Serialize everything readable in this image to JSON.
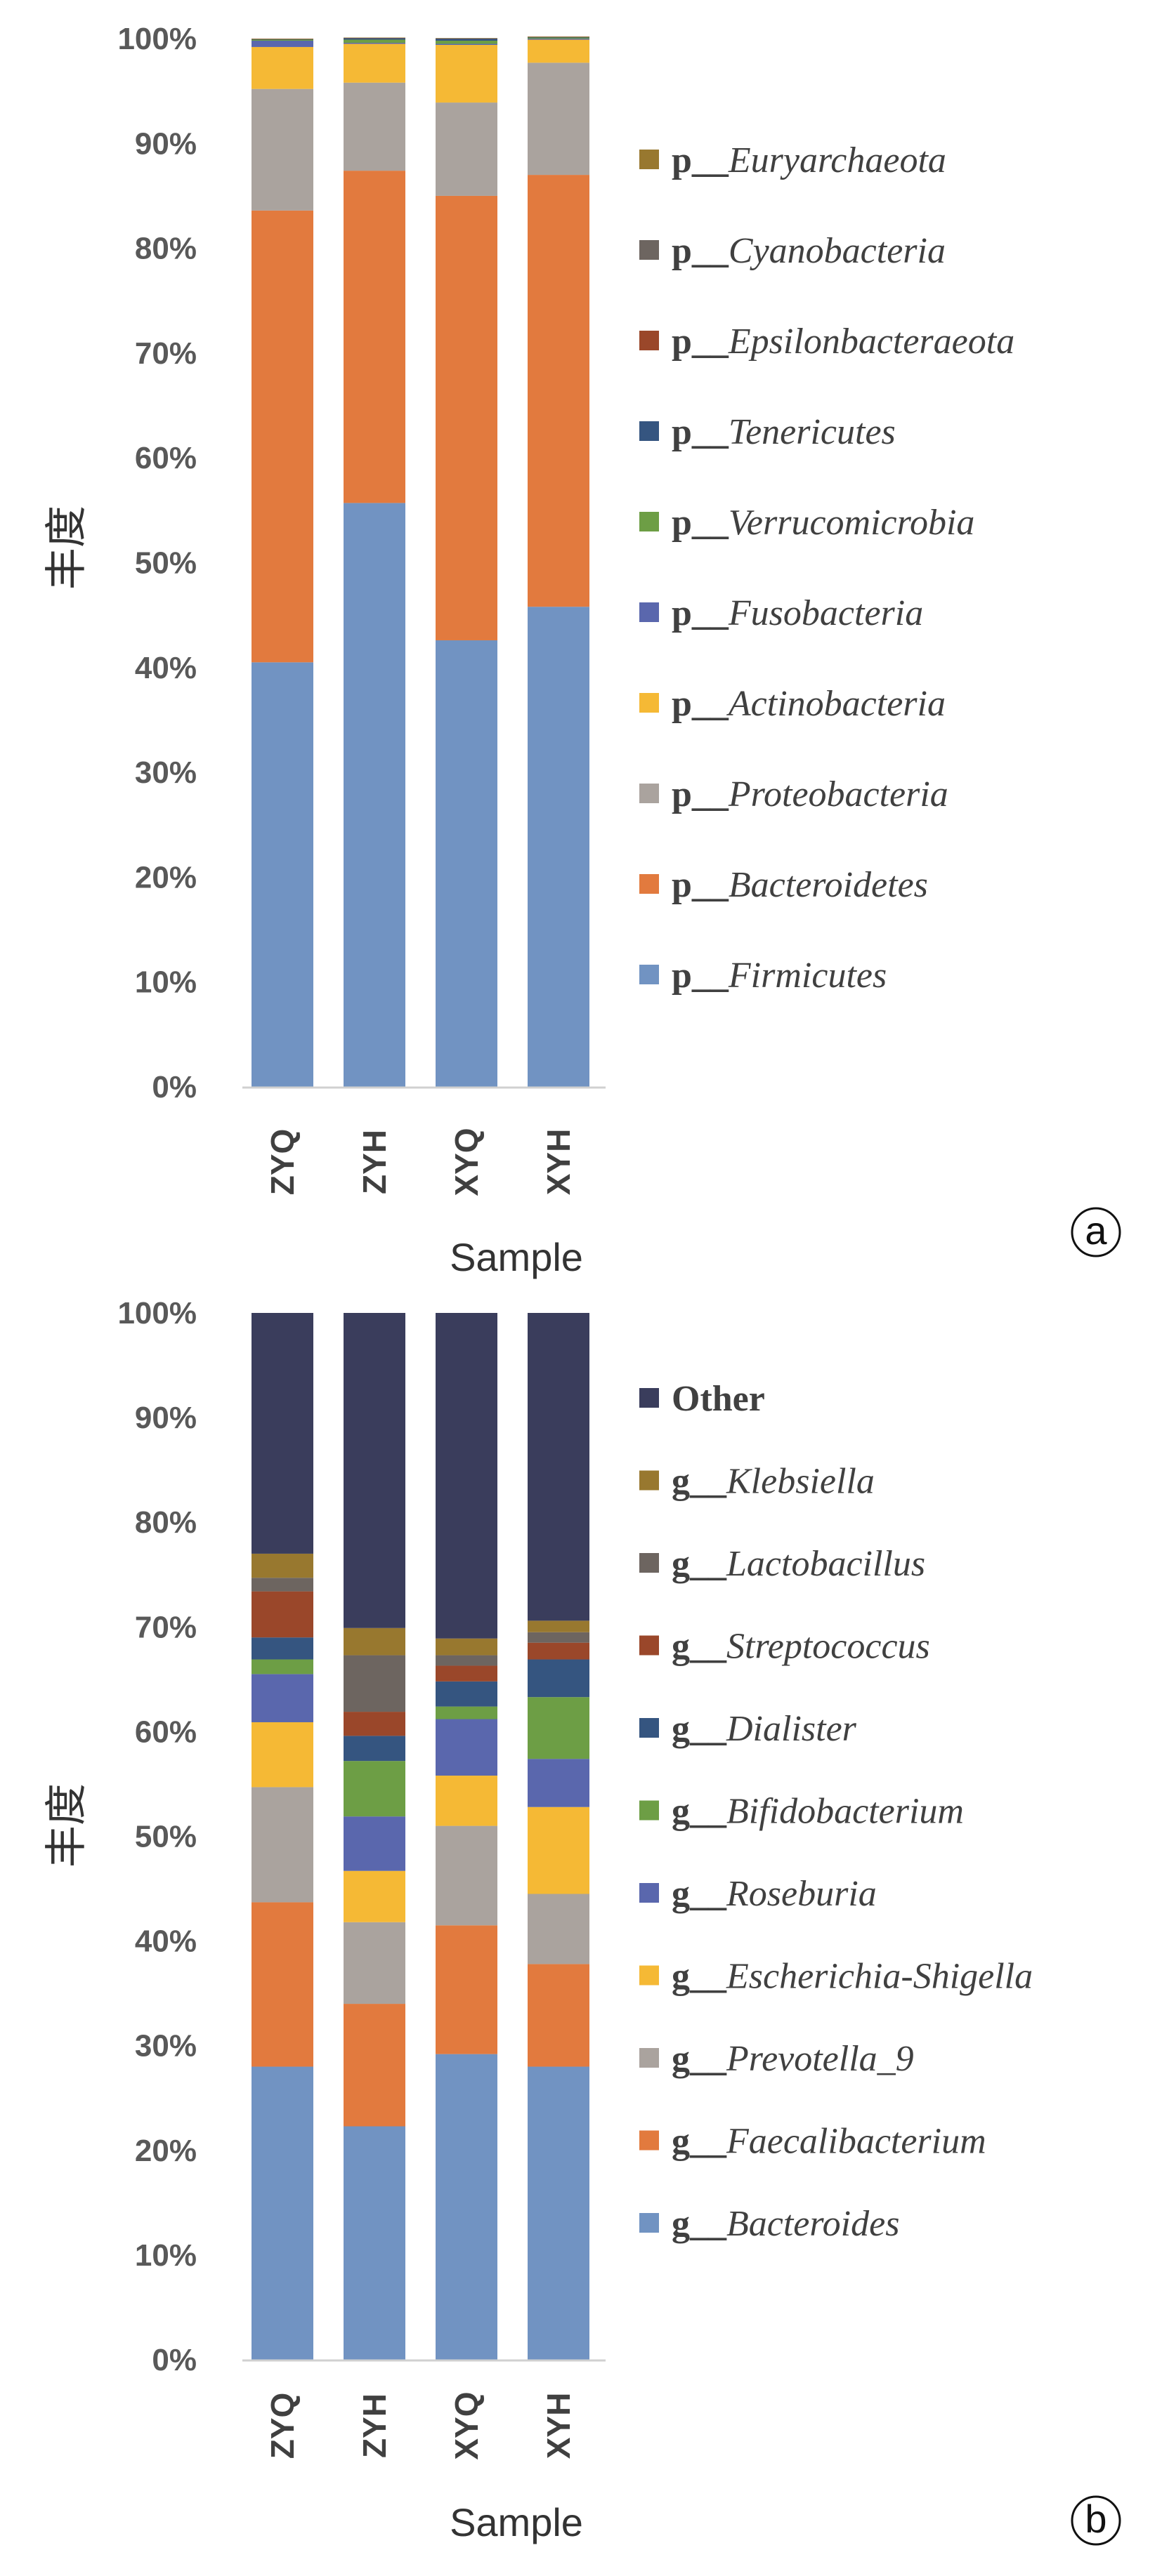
{
  "chart_data": [
    {
      "panel": "a",
      "type": "bar",
      "stacked": true,
      "ylabel": "丰度",
      "xlabel": "Sample",
      "ylim": [
        0,
        100
      ],
      "ytick_labels": [
        "0%",
        "10%",
        "20%",
        "30%",
        "40%",
        "50%",
        "60%",
        "70%",
        "80%",
        "90%",
        "100%"
      ],
      "categories": [
        "ZYQ",
        "ZYH",
        "XYQ",
        "XYH"
      ],
      "series": [
        {
          "prefix": "p__",
          "name": "Firmicutes",
          "color": "#7193c2",
          "values": [
            40.5,
            55.7,
            42.6,
            45.8
          ]
        },
        {
          "prefix": "p__",
          "name": "Bacteroidetes",
          "color": "#e27a3e",
          "values": [
            43.1,
            31.7,
            42.4,
            41.2
          ]
        },
        {
          "prefix": "p__",
          "name": "Proteobacteria",
          "color": "#aaa39e",
          "values": [
            11.6,
            8.4,
            8.9,
            10.7
          ]
        },
        {
          "prefix": "p__",
          "name": "Actinobacteria",
          "color": "#f5b935",
          "values": [
            4.0,
            3.7,
            5.5,
            2.2
          ]
        },
        {
          "prefix": "p__",
          "name": "Fusobacteria",
          "color": "#5a67ad",
          "values": [
            0.6,
            0.1,
            0.1,
            0.1
          ]
        },
        {
          "prefix": "p__",
          "name": "Verrucomicrobia",
          "color": "#6d9e45",
          "values": [
            0.1,
            0.3,
            0.3,
            0.1
          ]
        },
        {
          "prefix": "p__",
          "name": "Tenericutes",
          "color": "#355580",
          "values": [
            0.05,
            0.15,
            0.2,
            0.05
          ]
        },
        {
          "prefix": "p__",
          "name": "Epsilonbacteraeota",
          "color": "#9a472a",
          "values": [
            0.02,
            0.02,
            0.02,
            0.02
          ]
        },
        {
          "prefix": "p__",
          "name": "Cyanobacteria",
          "color": "#6d6560",
          "values": [
            0.02,
            0.02,
            0.02,
            0.02
          ]
        },
        {
          "prefix": "p__",
          "name": "Euryarchaeota",
          "color": "#98782f",
          "values": [
            0.01,
            0.01,
            0.01,
            0.01
          ]
        }
      ],
      "panel_label": "a"
    },
    {
      "panel": "b",
      "type": "bar",
      "stacked": true,
      "ylabel": "丰度",
      "xlabel": "Sample",
      "ylim": [
        0,
        100
      ],
      "ytick_labels": [
        "0%",
        "10%",
        "20%",
        "30%",
        "40%",
        "50%",
        "60%",
        "70%",
        "80%",
        "90%",
        "100%"
      ],
      "categories": [
        "ZYQ",
        "ZYH",
        "XYQ",
        "XYH"
      ],
      "series": [
        {
          "prefix": "g__",
          "name": "Bacteroides",
          "color": "#7193c2",
          "values": [
            28.0,
            22.3,
            29.2,
            28.0
          ]
        },
        {
          "prefix": "g__",
          "name": "Faecalibacterium",
          "color": "#e27a3e",
          "values": [
            15.7,
            11.7,
            12.3,
            9.8
          ]
        },
        {
          "prefix": "g__",
          "name": "Prevotella_9",
          "color": "#aaa39e",
          "values": [
            11.0,
            7.8,
            9.5,
            6.7
          ]
        },
        {
          "prefix": "g__",
          "name": "Escherichia-Shigella",
          "color": "#f5b935",
          "values": [
            6.2,
            4.9,
            4.8,
            8.3
          ]
        },
        {
          "prefix": "g__",
          "name": "Roseburia",
          "color": "#5a67ad",
          "values": [
            4.6,
            5.2,
            5.4,
            4.6
          ]
        },
        {
          "prefix": "g__",
          "name": "Bifidobacterium",
          "color": "#6d9e45",
          "values": [
            1.4,
            5.3,
            1.2,
            5.9
          ]
        },
        {
          "prefix": "g__",
          "name": "Dialister",
          "color": "#355580",
          "values": [
            2.1,
            2.4,
            2.4,
            3.6
          ]
        },
        {
          "prefix": "g__",
          "name": "Streptococcus",
          "color": "#9a472a",
          "values": [
            4.4,
            2.3,
            1.5,
            1.6
          ]
        },
        {
          "prefix": "g__",
          "name": "Lactobacillus",
          "color": "#6d6560",
          "values": [
            1.3,
            5.4,
            1.0,
            1.0
          ]
        },
        {
          "prefix": "g__",
          "name": "Klebsiella",
          "color": "#98782f",
          "values": [
            2.3,
            2.6,
            1.6,
            1.1
          ]
        },
        {
          "prefix": "",
          "name": "Other",
          "color": "#3a3d5c",
          "values": [
            23.0,
            30.1,
            31.1,
            29.4
          ]
        }
      ],
      "panel_label": "b"
    }
  ]
}
